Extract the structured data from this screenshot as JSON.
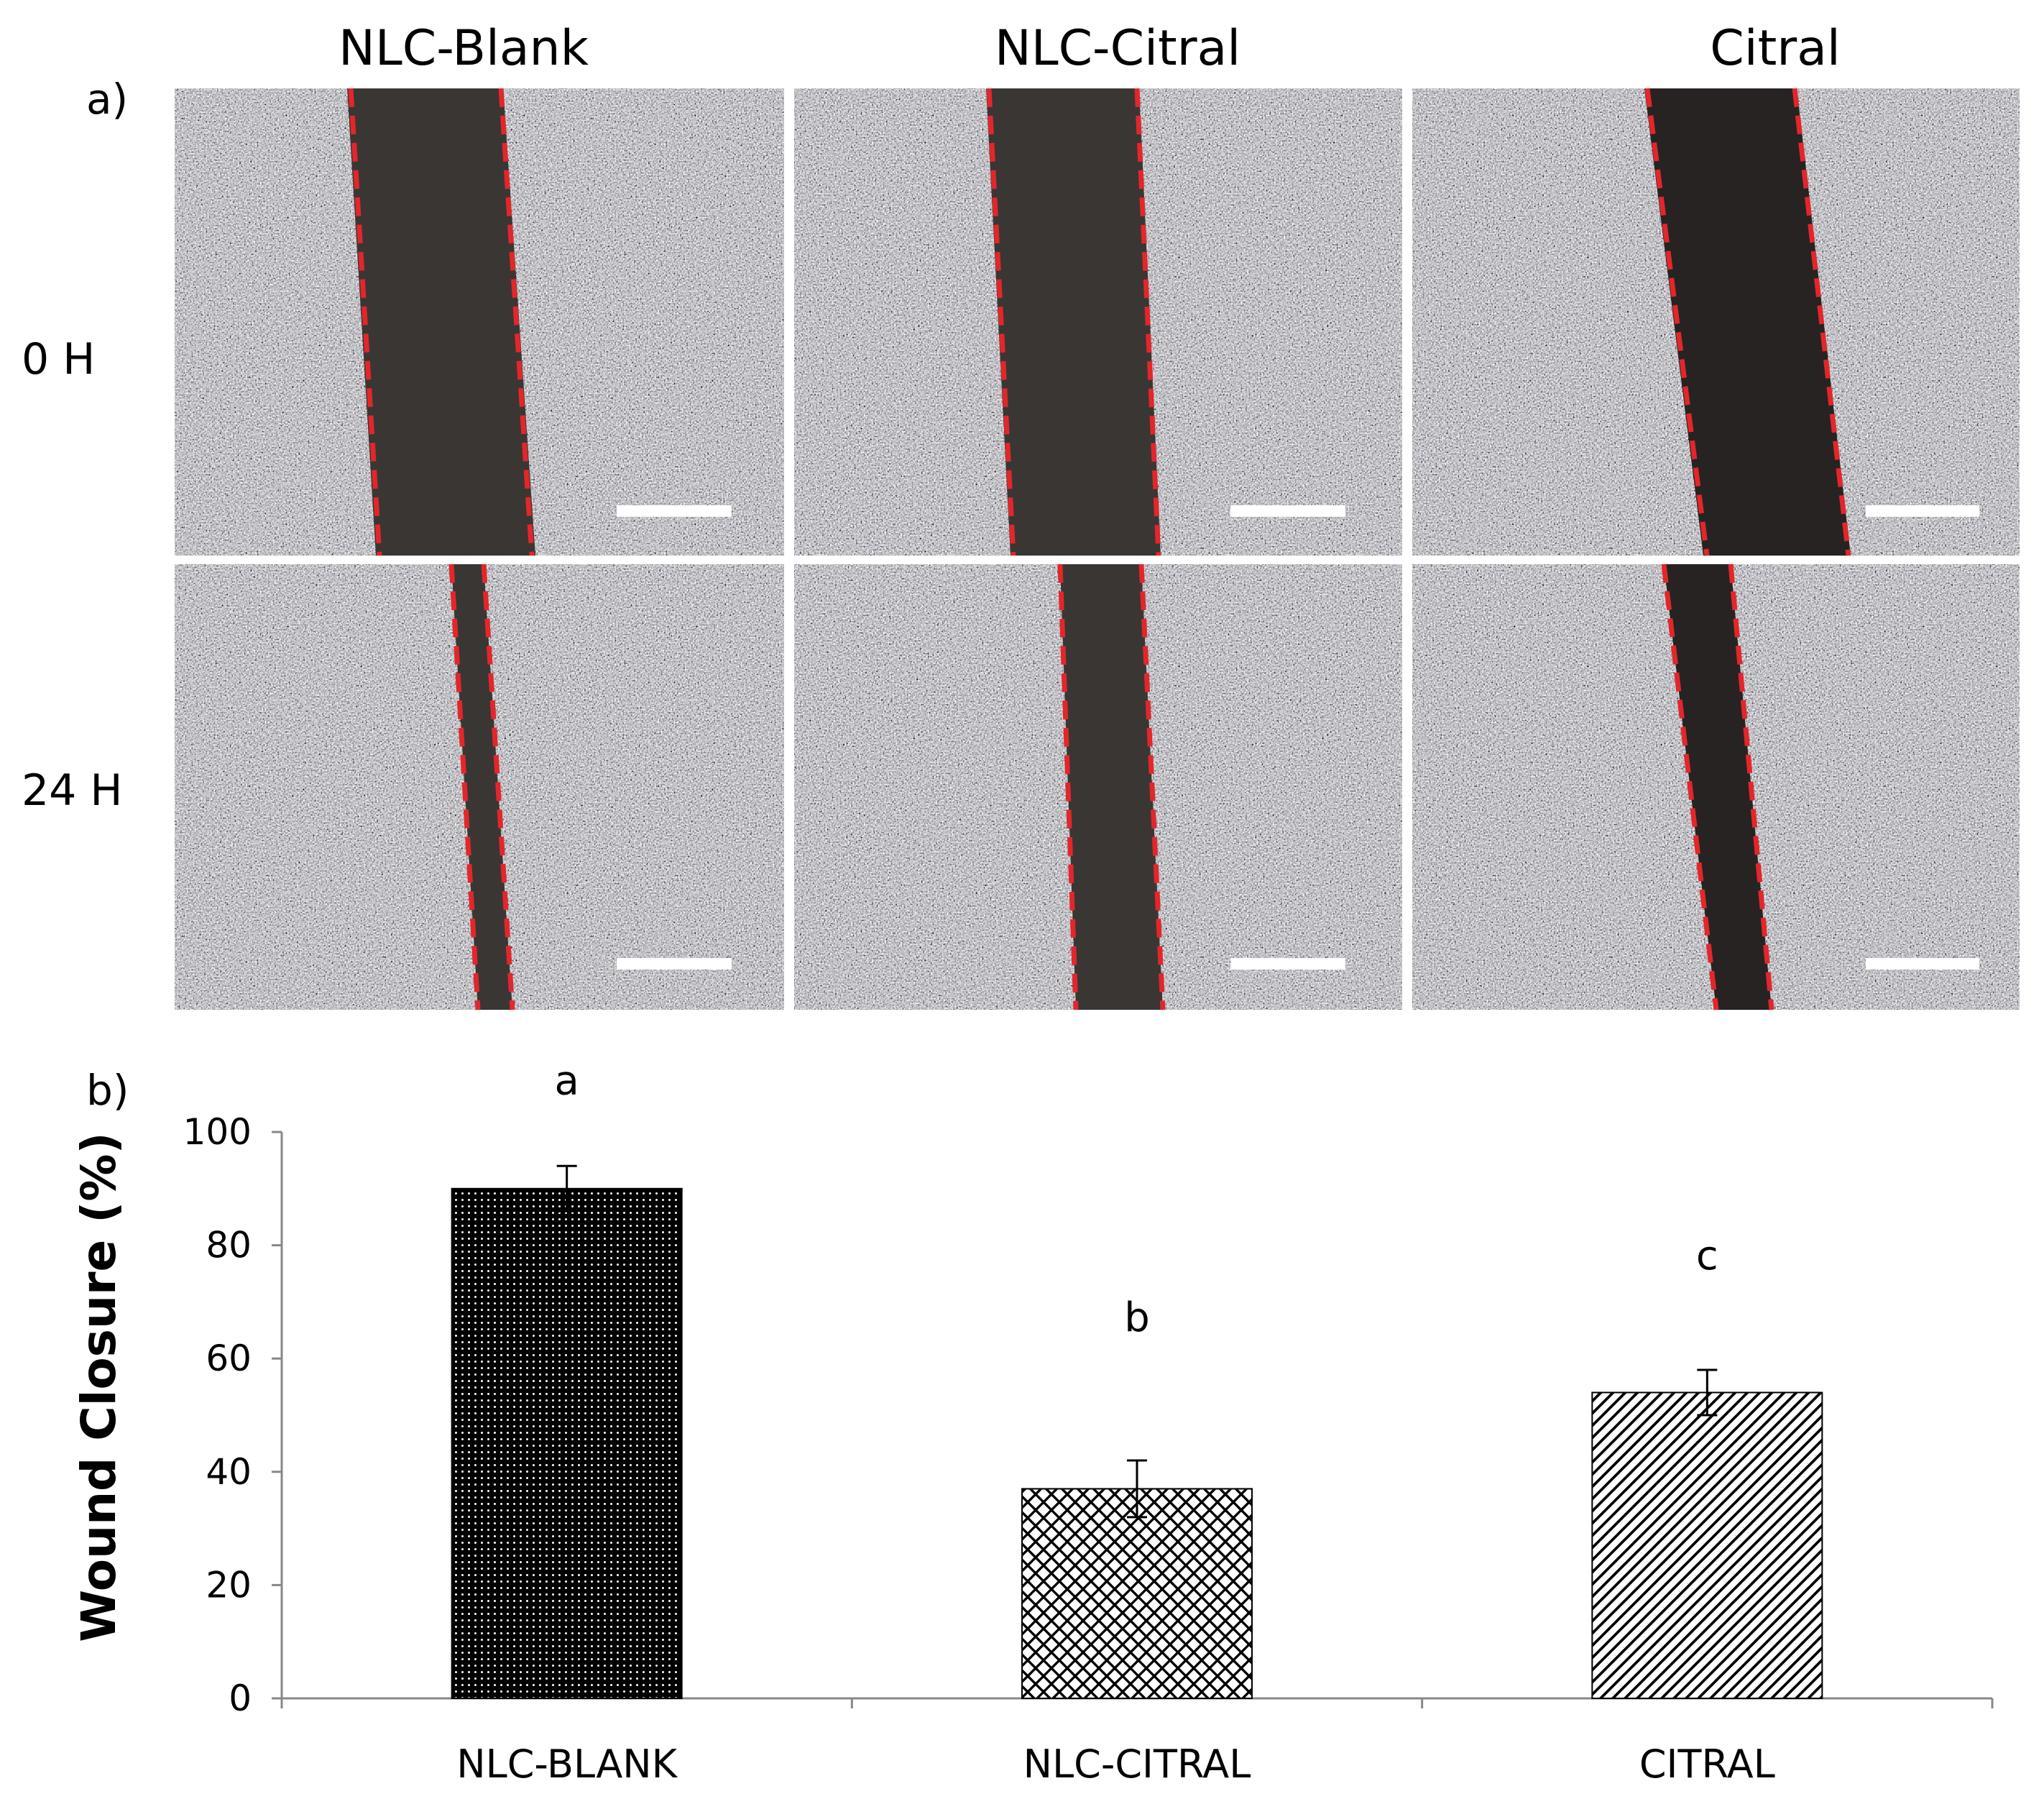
{
  "panel_a": {
    "label": "a)",
    "columns": [
      "NLC-Blank",
      "NLC-Citral",
      "Citral"
    ],
    "rows": [
      "0 H",
      "24 H"
    ],
    "scale_bar_color": "#ffffff",
    "wound_edge_color": "#e3262b"
  },
  "panel_b": {
    "label": "b)"
  },
  "chart_data": {
    "type": "bar",
    "categories": [
      "NLC-BLANK",
      "NLC-CITRAL",
      "CITRAL"
    ],
    "values": [
      90,
      37,
      54
    ],
    "errors": [
      4,
      5,
      4
    ],
    "significance_letters": [
      "a",
      "b",
      "c"
    ],
    "patterns": [
      "dots",
      "crosshatch",
      "diagonal"
    ],
    "title": "",
    "xlabel": "",
    "ylabel": "Wound Closure (%)",
    "ylim": [
      0,
      100
    ],
    "yticks": [
      0,
      20,
      40,
      60,
      80,
      100
    ],
    "grid": false,
    "legend": "none"
  }
}
